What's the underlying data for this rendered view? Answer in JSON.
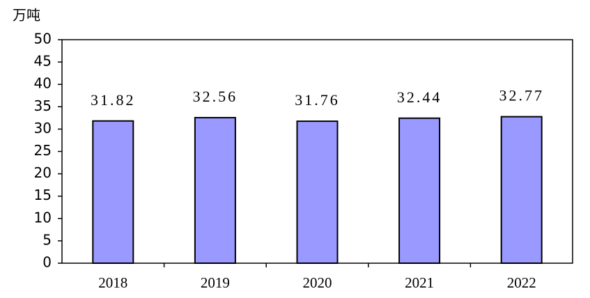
{
  "chart_data": {
    "type": "bar",
    "y_label": "万吨",
    "categories": [
      "2018",
      "2019",
      "2020",
      "2021",
      "2022"
    ],
    "values": [
      31.82,
      32.56,
      31.76,
      32.44,
      32.77
    ],
    "color": "#9999ff",
    "ylim": [
      0,
      50
    ],
    "yticks": [
      0,
      5,
      10,
      15,
      20,
      25,
      30,
      35,
      40,
      45,
      50
    ],
    "grid": false,
    "data_labels": true
  }
}
